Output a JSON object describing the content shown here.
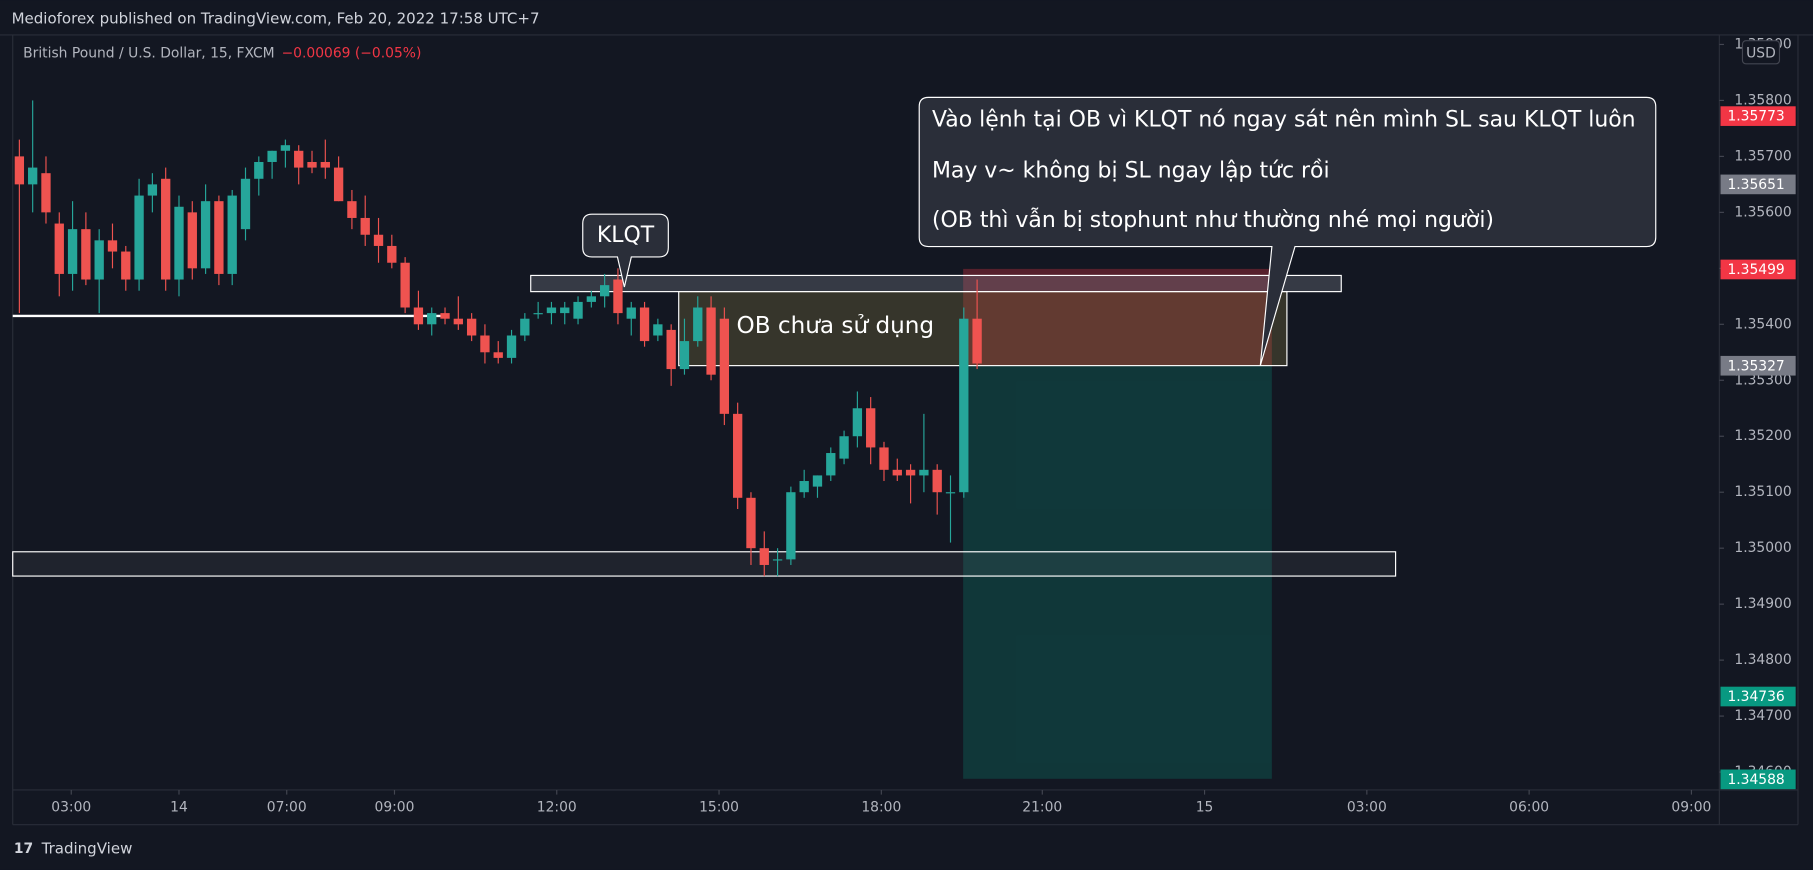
{
  "chart_data": {
    "type": "candlestick",
    "header": "Medioforex published on TradingView.com, Feb 20, 2022 17:58 UTC+7",
    "symbol": "British Pound / U.S. Dollar, 15, FXCM",
    "change": "−0.00069 (−0.05%)",
    "currency": "USD",
    "footer": "TradingView",
    "annotations": [
      "KLQT",
      "OB chưa sử dụng",
      "Vào lệnh tại OB vì KLQT nó ngay sát nên mình SL sau KLQT luôn",
      "May v~ không bị SL ngay lập tức rồi",
      "(OB thì vẫn bị stophunt như thường nhé mọi người)"
    ],
    "up_color": "#26a69a",
    "down_color": "#ef5350",
    "open": [
      1.357,
      1.3565,
      1.3567,
      1.3558,
      1.3549,
      1.3557,
      1.3548,
      1.3555,
      1.3553,
      1.3548,
      1.3563,
      1.3566,
      1.3548,
      1.356,
      1.355,
      1.3562,
      1.3549,
      1.3557,
      1.3566,
      1.3569,
      1.3571,
      1.3571,
      1.3569,
      1.3569,
      1.3568,
      1.3562,
      1.3559,
      1.3556,
      1.3554,
      1.3551,
      1.3543,
      1.354,
      1.3542,
      1.3541,
      1.3541,
      1.3538,
      1.3535,
      1.3534,
      1.3538,
      1.3542,
      1.3542,
      1.3542,
      1.3541,
      1.3544,
      1.3545,
      1.3548,
      1.3541,
      1.3543,
      1.3538,
      1.3539,
      1.3532,
      1.3537,
      1.3543,
      1.3541,
      1.3524,
      1.3509,
      1.35,
      1.3498,
      1.3498,
      1.351,
      1.3511,
      1.3513,
      1.3516,
      1.352,
      1.3525,
      1.3518,
      1.3514,
      1.3514,
      1.3513,
      1.3514,
      1.351,
      1.351,
      1.3541
    ],
    "high": [
      1.3573,
      1.358,
      1.357,
      1.356,
      1.3562,
      1.356,
      1.3557,
      1.3558,
      1.3554,
      1.3566,
      1.3567,
      1.3568,
      1.3563,
      1.3562,
      1.3565,
      1.3563,
      1.3564,
      1.3568,
      1.357,
      1.3571,
      1.3573,
      1.3572,
      1.3571,
      1.3573,
      1.357,
      1.3564,
      1.3563,
      1.3559,
      1.3556,
      1.3552,
      1.3546,
      1.3543,
      1.3543,
      1.3545,
      1.3542,
      1.354,
      1.3537,
      1.3539,
      1.3542,
      1.3544,
      1.3544,
      1.3544,
      1.3545,
      1.3546,
      1.3549,
      1.355,
      1.3544,
      1.3544,
      1.3541,
      1.354,
      1.3541,
      1.3545,
      1.3545,
      1.3543,
      1.3526,
      1.351,
      1.3503,
      1.35,
      1.3511,
      1.3514,
      1.3513,
      1.3518,
      1.3521,
      1.3528,
      1.3527,
      1.3519,
      1.3516,
      1.3515,
      1.3524,
      1.3515,
      1.3513,
      1.3543,
      1.3548
    ],
    "low": [
      1.3542,
      1.356,
      1.3558,
      1.3545,
      1.3546,
      1.3547,
      1.3542,
      1.355,
      1.3546,
      1.3546,
      1.356,
      1.3546,
      1.3545,
      1.3548,
      1.3549,
      1.3547,
      1.3547,
      1.3555,
      1.3563,
      1.3566,
      1.3568,
      1.3565,
      1.3567,
      1.3566,
      1.3562,
      1.3557,
      1.3554,
      1.3551,
      1.355,
      1.3542,
      1.3539,
      1.3538,
      1.354,
      1.3539,
      1.3537,
      1.3533,
      1.3533,
      1.3533,
      1.3537,
      1.3541,
      1.354,
      1.354,
      1.354,
      1.3543,
      1.3543,
      1.354,
      1.3538,
      1.3536,
      1.3537,
      1.3529,
      1.3531,
      1.3536,
      1.353,
      1.3522,
      1.3507,
      1.3497,
      1.3495,
      1.3495,
      1.3497,
      1.3509,
      1.3509,
      1.3512,
      1.3515,
      1.3518,
      1.3515,
      1.3512,
      1.3512,
      1.3508,
      1.351,
      1.3506,
      1.3501,
      1.3509,
      1.3532
    ],
    "close": [
      1.3565,
      1.3568,
      1.356,
      1.3549,
      1.3557,
      1.3548,
      1.3555,
      1.3553,
      1.3548,
      1.3563,
      1.3565,
      1.3548,
      1.3561,
      1.355,
      1.3562,
      1.3549,
      1.3563,
      1.3566,
      1.3569,
      1.3571,
      1.3572,
      1.3568,
      1.3568,
      1.3568,
      1.3562,
      1.3559,
      1.3556,
      1.3554,
      1.3551,
      1.3543,
      1.354,
      1.3542,
      1.3541,
      1.354,
      1.3538,
      1.3535,
      1.3534,
      1.3538,
      1.3541,
      1.3542,
      1.3543,
      1.3543,
      1.3544,
      1.3545,
      1.3547,
      1.3542,
      1.3543,
      1.3537,
      1.354,
      1.3532,
      1.3537,
      1.3543,
      1.3531,
      1.3524,
      1.3509,
      1.35,
      1.3497,
      1.3498,
      1.351,
      1.3512,
      1.3513,
      1.3517,
      1.352,
      1.3525,
      1.3518,
      1.3514,
      1.3513,
      1.3513,
      1.3514,
      1.351,
      1.351,
      1.3541,
      1.3533
    ],
    "xlim": [
      -0.5,
      127.8
    ],
    "xticks": [
      {
        "value": 3.9,
        "label": "03:00"
      },
      {
        "value": 12.0,
        "label": "14"
      },
      {
        "value": 20.1,
        "label": "07:00"
      },
      {
        "value": 28.2,
        "label": "09:00"
      },
      {
        "value": 40.4,
        "label": "12:00"
      },
      {
        "value": 52.6,
        "label": "15:00"
      },
      {
        "value": 64.8,
        "label": "18:00"
      },
      {
        "value": 76.9,
        "label": "21:00"
      },
      {
        "value": 89.1,
        "label": "15"
      },
      {
        "value": 101.3,
        "label": "03:00"
      },
      {
        "value": 113.5,
        "label": "06:00"
      },
      {
        "value": 125.7,
        "label": "09:00"
      }
    ],
    "ylim": [
      1.34568,
      1.35917
    ],
    "yticks": [
      {
        "value": 1.346,
        "label": "1.34600"
      },
      {
        "value": 1.347,
        "label": "1.34700"
      },
      {
        "value": 1.348,
        "label": "1.34800"
      },
      {
        "value": 1.349,
        "label": "1.34900"
      },
      {
        "value": 1.35,
        "label": "1.35000"
      },
      {
        "value": 1.351,
        "label": "1.35100"
      },
      {
        "value": 1.352,
        "label": "1.35200"
      },
      {
        "value": 1.353,
        "label": "1.35300"
      },
      {
        "value": 1.354,
        "label": "1.35400"
      },
      {
        "value": 1.355,
        "label": "1.35500"
      },
      {
        "value": 1.356,
        "label": "1.35600"
      },
      {
        "value": 1.357,
        "label": "1.35700"
      },
      {
        "value": 1.358,
        "label": "1.35800"
      },
      {
        "value": 1.359,
        "label": "1.35900"
      }
    ],
    "price_labels": [
      1.35773,
      1.35651,
      1.35499,
      1.35327,
      1.34736,
      1.34588
    ],
    "price_label_colors": [
      "#f23645",
      "#787b86",
      "#f23645",
      "#787b86",
      "#089981",
      "#089981"
    ],
    "grid": false
  }
}
